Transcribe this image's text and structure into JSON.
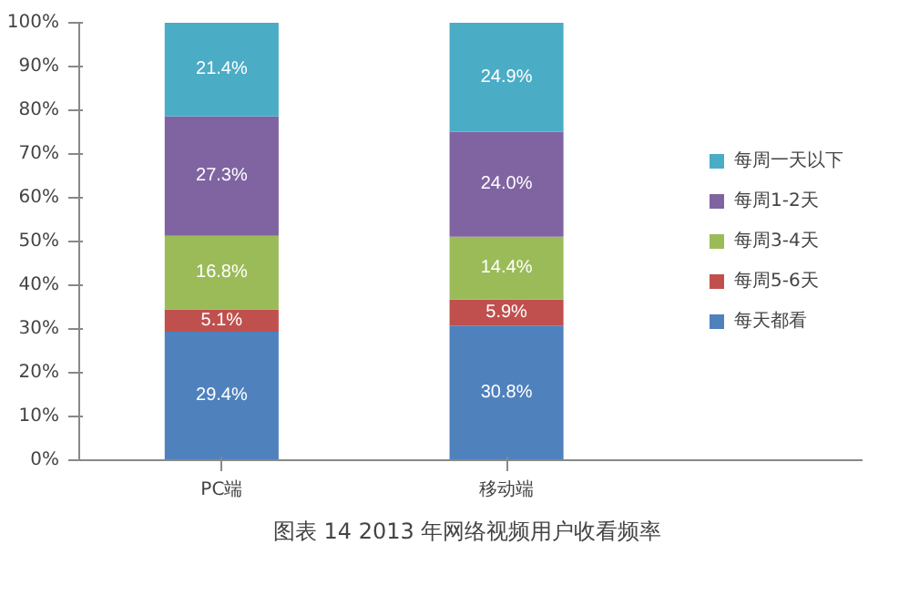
{
  "chart_data": {
    "type": "bar",
    "title": "图表 14  2013 年网络视频用户收看频率",
    "stacked": true,
    "categories": [
      "PC端",
      "移动端"
    ],
    "series": [
      {
        "name": "每天都看",
        "color": "#4f81bd",
        "values": [
          29.4,
          30.8
        ],
        "value_labels": [
          "29.4%",
          "30.8%"
        ]
      },
      {
        "name": "每周5-6天",
        "color": "#c0504d",
        "values": [
          5.1,
          5.9
        ],
        "value_labels": [
          "5.1%",
          "5.9%"
        ]
      },
      {
        "name": "每周3-4天",
        "color": "#9bbb59",
        "values": [
          16.8,
          14.4
        ],
        "value_labels": [
          "16.8%",
          "14.4%"
        ]
      },
      {
        "name": "每周1-2天",
        "color": "#8064a2",
        "values": [
          27.3,
          24.0
        ],
        "value_labels": [
          "27.3%",
          "24.0%"
        ]
      },
      {
        "name": "每周一天以下",
        "color": "#4bacc6",
        "values": [
          21.4,
          24.9
        ],
        "value_labels": [
          "21.4%",
          "24.9%"
        ]
      }
    ],
    "ylim": [
      0,
      100
    ],
    "yticks": [
      {
        "value": 0,
        "label": "0%"
      },
      {
        "value": 10,
        "label": "10%"
      },
      {
        "value": 20,
        "label": "20%"
      },
      {
        "value": 30,
        "label": "30%"
      },
      {
        "value": 40,
        "label": "40%"
      },
      {
        "value": 50,
        "label": "50%"
      },
      {
        "value": 60,
        "label": "60%"
      },
      {
        "value": 70,
        "label": "70%"
      },
      {
        "value": 80,
        "label": "80%"
      },
      {
        "value": 90,
        "label": "90%"
      },
      {
        "value": 100,
        "label": "100%"
      }
    ],
    "legend": "right"
  }
}
